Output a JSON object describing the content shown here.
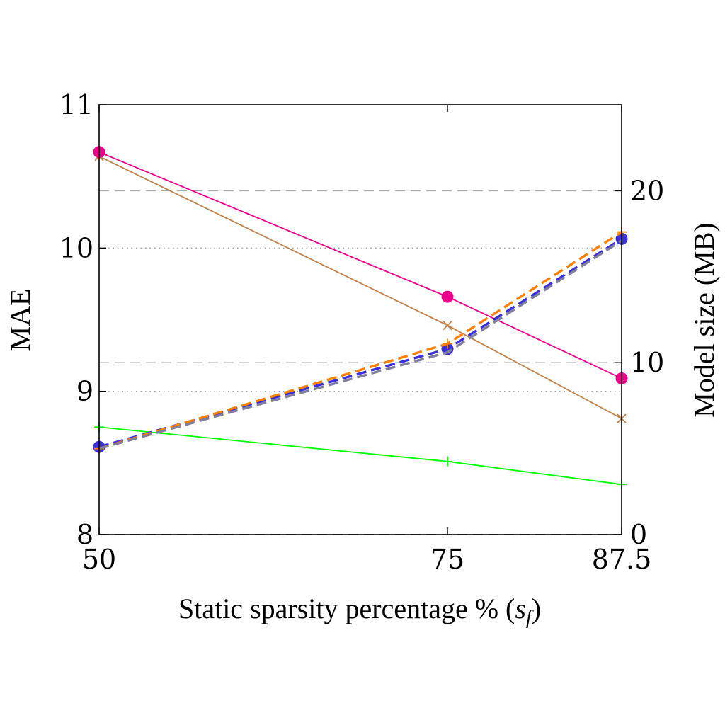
{
  "chart_data": {
    "type": "line",
    "title": "",
    "xlabel": "Static sparsity percentage % (s_f)",
    "xlabel_parts": {
      "text": "Static sparsity percentage % (",
      "var": "s",
      "sub": "f",
      "close": ")"
    },
    "ylabel_left": "MAE",
    "ylabel_right": "Model size (MB)",
    "x": [
      50,
      75,
      87.5
    ],
    "x_tick_labels": [
      "50",
      "75",
      "87.5"
    ],
    "xlim": [
      50,
      87.5
    ],
    "ylim_left": [
      8,
      11
    ],
    "y_left_ticks": [
      8,
      9,
      10,
      11
    ],
    "y_left_tick_labels": [
      "8",
      "9",
      "10",
      "11"
    ],
    "ylim_right": [
      0,
      25
    ],
    "y_right_ticks": [
      0,
      10,
      20
    ],
    "y_right_tick_labels": [
      "0",
      "10",
      "20"
    ],
    "grid": {
      "left_axis": "dotted",
      "right_axis": "dashed"
    },
    "legend": "none",
    "series": [
      {
        "axis": "left",
        "values": [
          10.67,
          9.66,
          9.09
        ],
        "color": "#ec008c",
        "marker": "circle",
        "dash": "solid"
      },
      {
        "axis": "left",
        "values": [
          10.64,
          9.46,
          8.81
        ],
        "color": "#c0804a",
        "marker": "x",
        "dash": "solid"
      },
      {
        "axis": "left",
        "values": [
          8.75,
          8.51,
          8.35
        ],
        "color": "#00ff00",
        "marker": "plus",
        "dash": "solid"
      },
      {
        "axis": "right",
        "values": [
          5.1,
          10.8,
          17.2
        ],
        "color": "#3b2fd8",
        "marker": "circle",
        "dash": "dashed"
      },
      {
        "axis": "right",
        "values": [
          5.0,
          11.1,
          17.6
        ],
        "color": "#ff8000",
        "marker": "plus",
        "dash": "dashed"
      },
      {
        "axis": "right",
        "values": [
          5.0,
          10.6,
          17.1
        ],
        "color": "#7f7f9a",
        "marker": "none",
        "dash": "dashed"
      }
    ]
  }
}
